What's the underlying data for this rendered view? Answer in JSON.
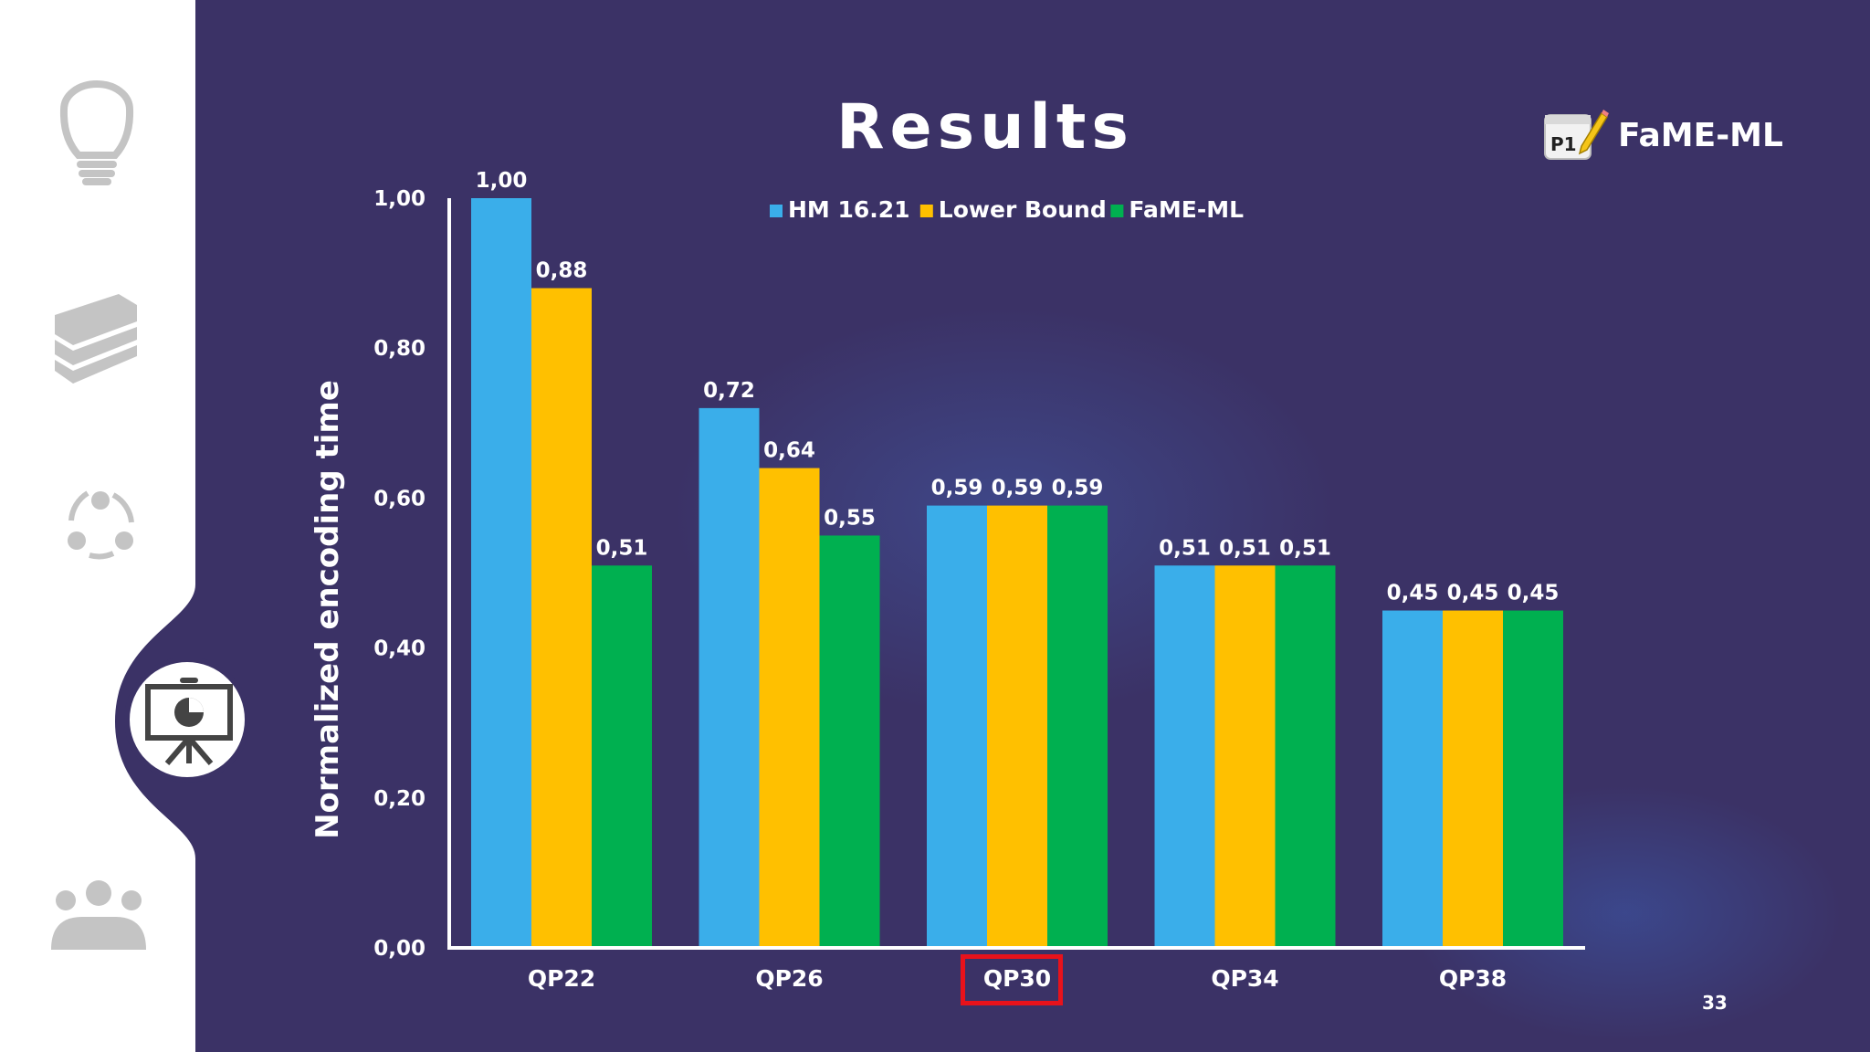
{
  "slide": {
    "title": "Results",
    "brand": {
      "badge": "P1",
      "name": "FaME-ML"
    },
    "page_number": "33",
    "highlighted_category": "QP30"
  },
  "sidebar": {
    "items": [
      {
        "icon": "lightbulb-icon",
        "active": false
      },
      {
        "icon": "books-icon",
        "active": false
      },
      {
        "icon": "cycle-icon",
        "active": false
      },
      {
        "icon": "presentation-chart-icon",
        "active": true
      },
      {
        "icon": "audience-icon",
        "active": false
      }
    ]
  },
  "colors": {
    "background": "#3b3266",
    "sidebar": "#ffffff",
    "hm": "#3aaeea",
    "lower_bound": "#ffc000",
    "fame_ml": "#00b050",
    "highlight": "#e8121b"
  },
  "chart_data": {
    "type": "bar",
    "categories": [
      "QP22",
      "QP26",
      "QP30",
      "QP34",
      "QP38"
    ],
    "series": [
      {
        "name": "HM 16.21",
        "values": [
          1.0,
          0.72,
          0.59,
          0.51,
          0.45
        ],
        "labels": [
          "1,00",
          "0,72",
          "0,59",
          "0,51",
          "0,45"
        ]
      },
      {
        "name": "Lower Bound",
        "values": [
          0.88,
          0.64,
          0.59,
          0.51,
          0.45
        ],
        "labels": [
          "0,88",
          "0,64",
          "0,59",
          "0,51",
          "0,45"
        ]
      },
      {
        "name": "FaME-ML",
        "values": [
          0.51,
          0.55,
          0.59,
          0.51,
          0.45
        ],
        "labels": [
          "0,51",
          "0,55",
          "0,59",
          "0,51",
          "0,45"
        ]
      }
    ],
    "ylabel": "Normalized encoding time",
    "xlabel": "",
    "ylim": [
      0,
      1
    ],
    "yticks": [
      0,
      0.2,
      0.4,
      0.6,
      0.8,
      1.0
    ],
    "ytick_labels": [
      "0,00",
      "0,20",
      "0,40",
      "0,60",
      "0,80",
      "1,00"
    ],
    "grid": false,
    "legend_position": "top"
  }
}
